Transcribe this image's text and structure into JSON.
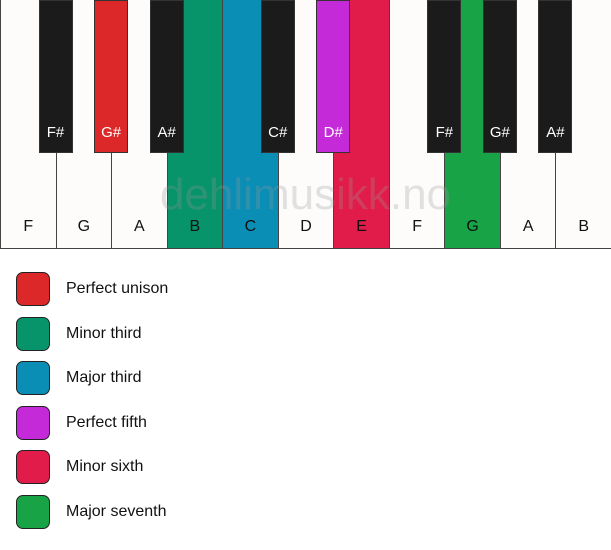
{
  "white_keys": [
    {
      "note": "F",
      "color": null
    },
    {
      "note": "G",
      "color": null
    },
    {
      "note": "A",
      "color": null
    },
    {
      "note": "B",
      "color": "#07946a"
    },
    {
      "note": "C",
      "color": "#0a8eb5"
    },
    {
      "note": "D",
      "color": null
    },
    {
      "note": "E",
      "color": "#e21c4a"
    },
    {
      "note": "F",
      "color": null
    },
    {
      "note": "G",
      "color": "#18a347"
    },
    {
      "note": "A",
      "color": null
    },
    {
      "note": "B",
      "color": null
    }
  ],
  "black_keys": [
    {
      "note": "F#",
      "after": 0,
      "color": null
    },
    {
      "note": "G#",
      "after": 1,
      "color": "#dc2828"
    },
    {
      "note": "A#",
      "after": 2,
      "color": null
    },
    {
      "note": "C#",
      "after": 4,
      "color": null
    },
    {
      "note": "D#",
      "after": 5,
      "color": "#c42ad8"
    },
    {
      "note": "F#",
      "after": 7,
      "color": null
    },
    {
      "note": "G#",
      "after": 8,
      "color": null
    },
    {
      "note": "A#",
      "after": 9,
      "color": null
    }
  ],
  "watermark": "dehlimusikk.no",
  "legend": [
    {
      "label": "Perfect unison",
      "color": "#dc2828"
    },
    {
      "label": "Minor third",
      "color": "#07946a"
    },
    {
      "label": "Major third",
      "color": "#0a8eb5"
    },
    {
      "label": "Perfect fifth",
      "color": "#c42ad8"
    },
    {
      "label": "Minor sixth",
      "color": "#e21c4a"
    },
    {
      "label": "Major seventh",
      "color": "#18a347"
    }
  ]
}
